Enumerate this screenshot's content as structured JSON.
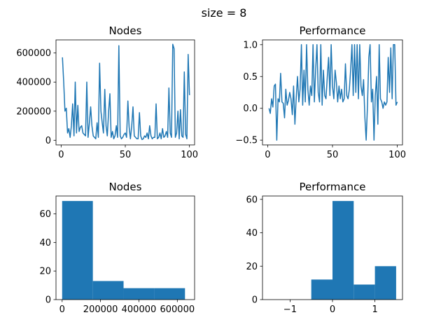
{
  "suptitle": "size = 8",
  "colors": {
    "line": "#1f77b4",
    "bar": "#1f77b4",
    "axis": "#000000",
    "background": "#ffffff"
  },
  "chart_data": [
    {
      "type": "line",
      "title": "Nodes",
      "xlabel": "",
      "ylabel": "",
      "xlim": [
        -4,
        104
      ],
      "ylim": [
        -32000,
        690000
      ],
      "xticks": [
        0,
        50,
        100
      ],
      "xtick_labels": [
        "0",
        "50",
        "100"
      ],
      "yticks": [
        0,
        200000,
        400000,
        600000
      ],
      "ytick_labels": [
        "0",
        "200000",
        "400000",
        "600000"
      ],
      "grid": false,
      "series": [
        {
          "x": [
            1,
            2,
            3,
            4,
            5,
            6,
            7,
            8,
            9,
            10,
            11,
            12,
            13,
            14,
            15,
            16,
            17,
            18,
            19,
            20,
            21,
            22,
            23,
            24,
            25,
            26,
            27,
            28,
            29,
            30,
            31,
            32,
            33,
            34,
            35,
            36,
            37,
            38,
            39,
            40,
            41,
            42,
            43,
            44,
            45,
            46,
            47,
            48,
            49,
            50,
            51,
            52,
            53,
            54,
            55,
            56,
            57,
            58,
            59,
            60,
            61,
            62,
            63,
            64,
            65,
            66,
            67,
            68,
            69,
            70,
            71,
            72,
            73,
            74,
            75,
            76,
            77,
            78,
            79,
            80,
            81,
            82,
            83,
            84,
            85,
            86,
            87,
            88,
            89,
            90,
            91,
            92,
            93,
            94,
            95,
            96,
            97,
            98,
            99,
            100
          ],
          "y": [
            570000,
            400000,
            200000,
            220000,
            50000,
            80000,
            20000,
            100000,
            250000,
            30000,
            400000,
            50000,
            240000,
            60000,
            90000,
            100000,
            50000,
            40000,
            30000,
            400000,
            20000,
            120000,
            230000,
            100000,
            30000,
            20000,
            10000,
            120000,
            20000,
            530000,
            200000,
            120000,
            50000,
            350000,
            100000,
            30000,
            200000,
            320000,
            20000,
            60000,
            10000,
            30000,
            100000,
            20000,
            650000,
            30000,
            10000,
            20000,
            40000,
            50000,
            20000,
            270000,
            90000,
            10000,
            100000,
            230000,
            30000,
            20000,
            10000,
            10000,
            190000,
            30000,
            5000,
            10000,
            30000,
            20000,
            50000,
            10000,
            100000,
            30000,
            10000,
            20000,
            20000,
            250000,
            10000,
            20000,
            50000,
            10000,
            80000,
            20000,
            30000,
            60000,
            20000,
            360000,
            50000,
            20000,
            660000,
            630000,
            20000,
            50000,
            200000,
            10000,
            210000,
            30000,
            20000,
            470000,
            40000,
            10000,
            590000,
            310000
          ]
        }
      ]
    },
    {
      "type": "line",
      "title": "Performance",
      "xlabel": "",
      "ylabel": "",
      "xlim": [
        -4,
        104
      ],
      "ylim": [
        -0.575,
        1.075
      ],
      "xticks": [
        0,
        50,
        100
      ],
      "xtick_labels": [
        "0",
        "50",
        "100"
      ],
      "yticks": [
        -0.5,
        0.0,
        0.5,
        1.0
      ],
      "ytick_labels": [
        "−0.5",
        "0.0",
        "0.5",
        "1.0"
      ],
      "grid": false,
      "series": [
        {
          "x": [
            1,
            2,
            3,
            4,
            5,
            6,
            7,
            8,
            9,
            10,
            11,
            12,
            13,
            14,
            15,
            16,
            17,
            18,
            19,
            20,
            21,
            22,
            23,
            24,
            25,
            26,
            27,
            28,
            29,
            30,
            31,
            32,
            33,
            34,
            35,
            36,
            37,
            38,
            39,
            40,
            41,
            42,
            43,
            44,
            45,
            46,
            47,
            48,
            49,
            50,
            51,
            52,
            53,
            54,
            55,
            56,
            57,
            58,
            59,
            60,
            61,
            62,
            63,
            64,
            65,
            66,
            67,
            68,
            69,
            70,
            71,
            72,
            73,
            74,
            75,
            76,
            77,
            78,
            79,
            80,
            81,
            82,
            83,
            84,
            85,
            86,
            87,
            88,
            89,
            90,
            91,
            92,
            93,
            94,
            95,
            96,
            97,
            98,
            99,
            100
          ],
          "y": [
            0.0,
            -0.08,
            0.15,
            0.02,
            0.35,
            0.38,
            -0.5,
            0.15,
            0.1,
            0.55,
            0.1,
            0.08,
            -0.15,
            0.3,
            0.05,
            0.12,
            0.25,
            0.15,
            -0.1,
            0.35,
            -0.25,
            0.15,
            0.5,
            0.1,
            0.3,
            1.0,
            0.05,
            0.6,
            0.1,
            1.0,
            0.3,
            0.05,
            0.35,
            0.2,
            1.0,
            0.1,
            0.6,
            1.0,
            0.25,
            0.1,
            1.0,
            0.05,
            0.6,
            0.2,
            0.15,
            0.5,
            0.8,
            0.2,
            1.0,
            0.35,
            0.15,
            0.6,
            0.4,
            0.1,
            0.35,
            0.15,
            0.3,
            0.1,
            0.15,
            0.7,
            0.2,
            0.15,
            0.3,
            0.6,
            1.0,
            0.2,
            1.0,
            0.25,
            1.0,
            0.15,
            1.0,
            0.35,
            0.2,
            0.45,
            -0.15,
            -0.5,
            0.05,
            0.8,
            1.0,
            0.1,
            0.3,
            -0.5,
            0.2,
            0.5,
            -0.25,
            1.0,
            0.15,
            0.1,
            0.0,
            0.1,
            0.05,
            0.1,
            0.8,
            0.25,
            0.95,
            0.15,
            1.0,
            1.0,
            0.05,
            0.1
          ]
        }
      ]
    },
    {
      "type": "bar",
      "title": "Nodes",
      "xlabel": "",
      "ylabel": "",
      "xlim": [
        -32000,
        690000
      ],
      "ylim": [
        0,
        72.5
      ],
      "xticks": [
        0,
        200000,
        400000,
        600000
      ],
      "xtick_labels": [
        "0",
        "200000",
        "400000",
        "600000"
      ],
      "yticks": [
        0,
        20,
        40,
        60
      ],
      "ytick_labels": [
        "0",
        "20",
        "40",
        "60"
      ],
      "grid": false,
      "bins": [
        {
          "x0": 0,
          "x1": 160000,
          "count": 69
        },
        {
          "x0": 160000,
          "x1": 320000,
          "count": 13
        },
        {
          "x0": 320000,
          "x1": 480000,
          "count": 8
        },
        {
          "x0": 480000,
          "x1": 640000,
          "count": 8
        }
      ]
    },
    {
      "type": "bar",
      "title": "Performance",
      "xlabel": "",
      "ylabel": "",
      "xlim": [
        -1.65,
        1.65
      ],
      "ylim": [
        0,
        62
      ],
      "xticks": [
        -1,
        0,
        1
      ],
      "xtick_labels": [
        "−1",
        "0",
        "1"
      ],
      "yticks": [
        0,
        20,
        40,
        60
      ],
      "ytick_labels": [
        "0",
        "20",
        "40",
        "60"
      ],
      "grid": false,
      "bins": [
        {
          "x0": -1.5,
          "x1": -1.0,
          "count": 0
        },
        {
          "x0": -1.0,
          "x1": -0.5,
          "count": 0
        },
        {
          "x0": -0.5,
          "x1": 0.0,
          "count": 12
        },
        {
          "x0": 0.0,
          "x1": 0.5,
          "count": 59
        },
        {
          "x0": 0.5,
          "x1": 1.0,
          "count": 9
        },
        {
          "x0": 1.0,
          "x1": 1.5,
          "count": 20
        }
      ]
    }
  ]
}
